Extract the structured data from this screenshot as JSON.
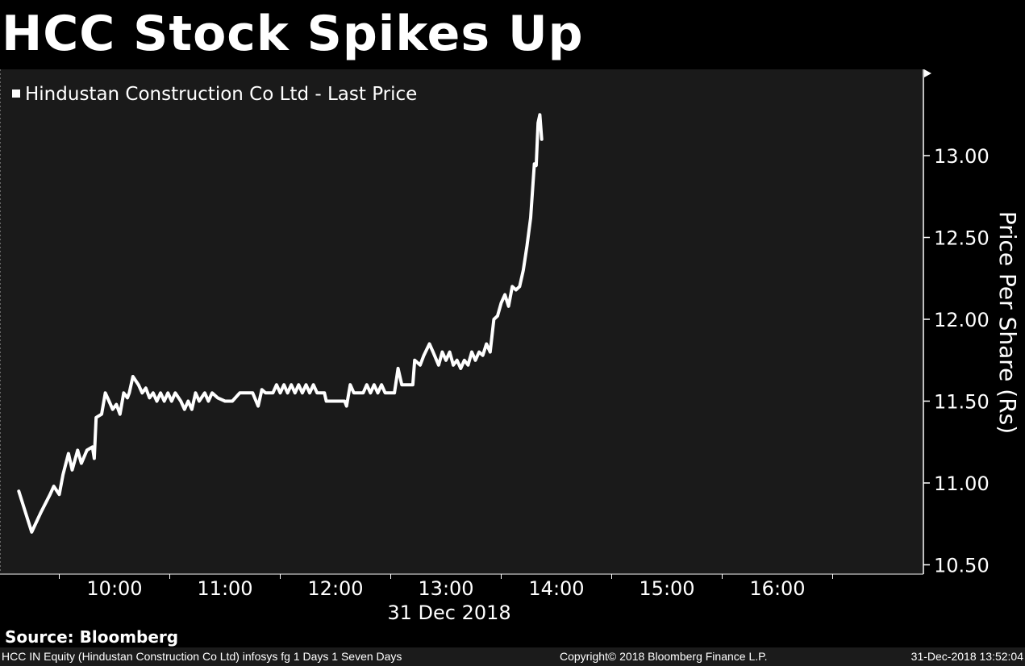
{
  "chart_data": {
    "type": "line",
    "title": "HCC Stock Spikes Up",
    "legend": "Hindustan Construction Co Ltd - Last Price",
    "ylabel": "Price Per Share (Rs)",
    "xlabel": "31 Dec 2018",
    "legend_placement": "top-left",
    "ylim": [
      10.45,
      13.5
    ],
    "y_ticks": [
      "13.00",
      "12.50",
      "12.00",
      "11.50",
      "11.00",
      "10.50"
    ],
    "x_ticks": [
      "10:00",
      "11:00",
      "12:00",
      "13:00",
      "14:00",
      "15:00",
      "16:00"
    ],
    "series": [
      {
        "name": "Hindustan Construction Co Ltd - Last Price",
        "color": "#ffffff",
        "points": [
          [
            "09:08",
            10.95
          ],
          [
            "09:15",
            10.7
          ],
          [
            "09:20",
            10.82
          ],
          [
            "09:25",
            10.93
          ],
          [
            "09:27",
            10.98
          ],
          [
            "09:30",
            10.93
          ],
          [
            "09:32",
            11.05
          ],
          [
            "09:35",
            11.18
          ],
          [
            "09:37",
            11.08
          ],
          [
            "09:40",
            11.2
          ],
          [
            "09:42",
            11.12
          ],
          [
            "09:45",
            11.2
          ],
          [
            "09:48",
            11.22
          ],
          [
            "09:49",
            11.15
          ],
          [
            "09:50",
            11.4
          ],
          [
            "09:53",
            11.42
          ],
          [
            "09:55",
            11.55
          ],
          [
            "09:57",
            11.5
          ],
          [
            "09:59",
            11.45
          ],
          [
            "10:01",
            11.48
          ],
          [
            "10:03",
            11.42
          ],
          [
            "10:05",
            11.55
          ],
          [
            "10:07",
            11.52
          ],
          [
            "10:08",
            11.55
          ],
          [
            "10:10",
            11.65
          ],
          [
            "10:13",
            11.6
          ],
          [
            "10:15",
            11.55
          ],
          [
            "10:17",
            11.58
          ],
          [
            "10:19",
            11.52
          ],
          [
            "10:21",
            11.55
          ],
          [
            "10:23",
            11.5
          ],
          [
            "10:25",
            11.55
          ],
          [
            "10:27",
            11.5
          ],
          [
            "10:29",
            11.55
          ],
          [
            "10:31",
            11.5
          ],
          [
            "10:33",
            11.55
          ],
          [
            "10:36",
            11.5
          ],
          [
            "10:38",
            11.45
          ],
          [
            "10:40",
            11.5
          ],
          [
            "10:42",
            11.45
          ],
          [
            "10:44",
            11.55
          ],
          [
            "10:46",
            11.5
          ],
          [
            "10:49",
            11.55
          ],
          [
            "10:51",
            11.5
          ],
          [
            "10:53",
            11.55
          ],
          [
            "10:56",
            11.52
          ],
          [
            "11:00",
            11.5
          ],
          [
            "11:04",
            11.5
          ],
          [
            "11:08",
            11.55
          ],
          [
            "11:15",
            11.55
          ],
          [
            "11:18",
            11.47
          ],
          [
            "11:20",
            11.57
          ],
          [
            "11:22",
            11.55
          ],
          [
            "11:26",
            11.55
          ],
          [
            "11:28",
            11.6
          ],
          [
            "11:30",
            11.55
          ],
          [
            "11:32",
            11.6
          ],
          [
            "11:34",
            11.55
          ],
          [
            "11:36",
            11.6
          ],
          [
            "11:38",
            11.55
          ],
          [
            "11:40",
            11.6
          ],
          [
            "11:42",
            11.55
          ],
          [
            "11:44",
            11.6
          ],
          [
            "11:46",
            11.55
          ],
          [
            "11:48",
            11.6
          ],
          [
            "11:50",
            11.55
          ],
          [
            "11:54",
            11.55
          ],
          [
            "11:55",
            11.5
          ],
          [
            "12:05",
            11.5
          ],
          [
            "12:06",
            11.47
          ],
          [
            "12:08",
            11.6
          ],
          [
            "12:10",
            11.55
          ],
          [
            "12:15",
            11.55
          ],
          [
            "12:17",
            11.6
          ],
          [
            "12:19",
            11.55
          ],
          [
            "12:21",
            11.6
          ],
          [
            "12:23",
            11.55
          ],
          [
            "12:25",
            11.6
          ],
          [
            "12:27",
            11.55
          ],
          [
            "12:32",
            11.55
          ],
          [
            "12:34",
            11.7
          ],
          [
            "12:36",
            11.6
          ],
          [
            "12:42",
            11.6
          ],
          [
            "12:43",
            11.75
          ],
          [
            "12:46",
            11.72
          ],
          [
            "12:48",
            11.78
          ],
          [
            "12:51",
            11.85
          ],
          [
            "12:53",
            11.8
          ],
          [
            "12:56",
            11.72
          ],
          [
            "12:58",
            11.8
          ],
          [
            "13:00",
            11.75
          ],
          [
            "13:02",
            11.8
          ],
          [
            "13:04",
            11.72
          ],
          [
            "13:06",
            11.75
          ],
          [
            "13:08",
            11.7
          ],
          [
            "13:10",
            11.75
          ],
          [
            "13:12",
            11.72
          ],
          [
            "13:14",
            11.8
          ],
          [
            "13:16",
            11.75
          ],
          [
            "13:18",
            11.8
          ],
          [
            "13:20",
            11.78
          ],
          [
            "13:22",
            11.85
          ],
          [
            "13:24",
            11.8
          ],
          [
            "13:26",
            12.0
          ],
          [
            "13:28",
            12.02
          ],
          [
            "13:30",
            12.1
          ],
          [
            "13:32",
            12.15
          ],
          [
            "13:34",
            12.08
          ],
          [
            "13:36",
            12.2
          ],
          [
            "13:38",
            12.18
          ],
          [
            "13:40",
            12.2
          ],
          [
            "13:42",
            12.3
          ],
          [
            "13:44",
            12.45
          ],
          [
            "13:46",
            12.62
          ],
          [
            "13:48",
            12.95
          ],
          [
            "13:49",
            12.94
          ],
          [
            "13:50",
            13.2
          ],
          [
            "13:51",
            13.25
          ],
          [
            "13:52",
            13.1
          ]
        ]
      }
    ]
  },
  "footer": {
    "source": "Source: Bloomberg",
    "ticker_info": "HCC IN Equity (Hindustan Construction Co Ltd) infosys fg 1 Days 1 Seven Days",
    "copyright": "Copyright© 2018 Bloomberg Finance L.P.",
    "timestamp": "31-Dec-2018 13:52:04"
  },
  "colors": {
    "background": "#000000",
    "plot_background": "#1a1a1a",
    "line": "#ffffff",
    "footer_bar": "#1b1b1b"
  }
}
